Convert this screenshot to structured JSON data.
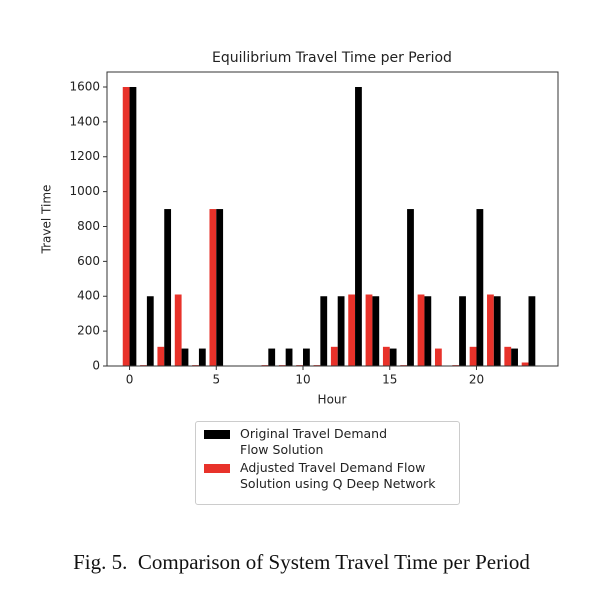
{
  "chart_data": {
    "type": "bar",
    "title": "Equilibrium Travel Time per Period",
    "x_label": "Hour",
    "y_label": "Travel Time",
    "x": [
      0,
      1,
      2,
      3,
      4,
      5,
      6,
      7,
      8,
      9,
      10,
      11,
      12,
      13,
      14,
      15,
      16,
      17,
      18,
      19,
      20,
      21,
      22,
      23
    ],
    "series": [
      {
        "name": "Original Travel Demand\nFlow Solution",
        "color": "#000000",
        "values": [
          1600,
          400,
          900,
          100,
          100,
          900,
          0,
          0,
          100,
          100,
          100,
          400,
          400,
          1600,
          400,
          100,
          900,
          400,
          0,
          400,
          900,
          400,
          100,
          400
        ]
      },
      {
        "name": "Adjusted Travel Demand Flow\nSolution using Q Deep Network",
        "color": "#e8322a",
        "values": [
          1600,
          5,
          110,
          410,
          5,
          900,
          0,
          0,
          5,
          5,
          5,
          5,
          110,
          410,
          410,
          110,
          5,
          410,
          100,
          5,
          110,
          410,
          110,
          20
        ]
      }
    ],
    "xlim": [
      -1.3,
      24.7
    ],
    "xticks": [
      0,
      5,
      10,
      15,
      20
    ],
    "ylim": [
      0,
      1686
    ],
    "yticks": [
      0,
      200,
      400,
      600,
      800,
      1000,
      1200,
      1400,
      1600
    ],
    "legend": "bottom-outside",
    "caption": "Fig. 5.  Comparison of System Travel Time per Period"
  }
}
